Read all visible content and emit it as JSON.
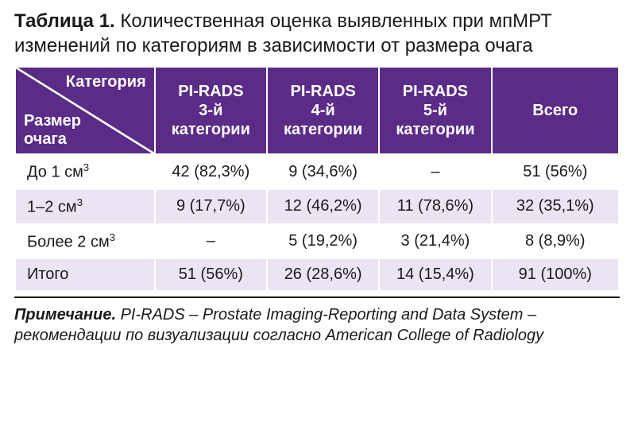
{
  "title": {
    "label": "Таблица 1.",
    "text": "Количественная оценка выявленных при мпМРТ изменений по категориям в зависимости от размера очага"
  },
  "colors": {
    "header_bg": "#5b2c87",
    "header_fg": "#ffffff",
    "row_alt_bg": "#ece4f2",
    "border": "#ffffff",
    "rule": "#1a1a1a"
  },
  "table": {
    "diag": {
      "top": "Категория",
      "bottom_l1": "Размер",
      "bottom_l2": "очага"
    },
    "headers": [
      {
        "l1": "PI-RADS",
        "l2": "3-й",
        "l3": "категории"
      },
      {
        "l1": "PI-RADS",
        "l2": "4-й",
        "l3": "категории"
      },
      {
        "l1": "PI-RADS",
        "l2": "5-й",
        "l3": "категории"
      },
      {
        "single": "Всего"
      }
    ],
    "rows": [
      {
        "label_html": "До 1 см<sup>3</sup>",
        "cells": [
          "42 (82,3%)",
          "9 (34,6%)",
          "–",
          "51 (56%)"
        ]
      },
      {
        "label_html": "1–2 см<sup>3</sup>",
        "cells": [
          "9 (17,7%)",
          "12 (46,2%)",
          "11 (78,6%)",
          "32 (35,1%)"
        ]
      },
      {
        "label_html": "Более 2 см<sup>3</sup>",
        "cells": [
          "–",
          "5 (19,2%)",
          "3 (21,4%)",
          "8 (8,9%)"
        ]
      },
      {
        "label_html": "Итого",
        "cells": [
          "51 (56%)",
          "26 (28,6%)",
          "14 (15,4%)",
          "91 (100%)"
        ]
      }
    ]
  },
  "note": {
    "label": "Примечание.",
    "text": "PI-RADS – Prostate Imaging-Reporting and Data System – рекомендации по визуализации согласно American College of Radiology"
  }
}
